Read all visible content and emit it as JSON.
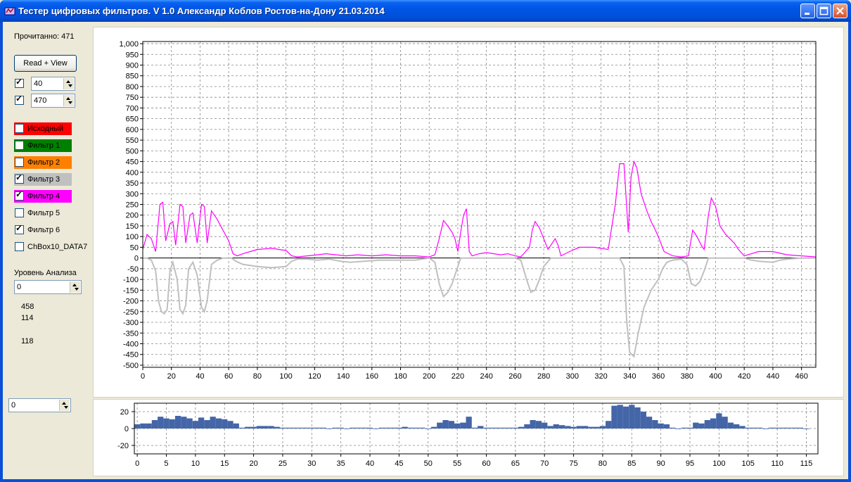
{
  "window": {
    "title": "Тестер цифровых фильтров. V 1.0 Александр Коблов Ростов-на-Дону 21.03.2014",
    "icons": [
      "app-icon",
      "minimize-icon",
      "maximize-icon",
      "close-icon"
    ]
  },
  "left_panel": {
    "read_count_label": "Прочитанно: 471",
    "read_view_button": "Read + View",
    "range_start": {
      "checked": true,
      "value": "40"
    },
    "range_end": {
      "checked": true,
      "value": "470"
    },
    "filters": [
      {
        "label": "Исходный",
        "checked": false,
        "color": "#ff0000"
      },
      {
        "label": "Фильтр 1",
        "checked": false,
        "color": "#008000"
      },
      {
        "label": "Фильтр 2",
        "checked": false,
        "color": "#ff8000"
      },
      {
        "label": "Фильтр 3",
        "checked": true,
        "color": "#c0c0c0"
      },
      {
        "label": "Фильтр 4",
        "checked": true,
        "color": "#ff00ff"
      },
      {
        "label": "Фильтр 5",
        "checked": false,
        "color": ""
      },
      {
        "label": "Фильтр 6",
        "checked": true,
        "color": ""
      },
      {
        "label": "ChBox10_DATA7",
        "checked": false,
        "color": ""
      }
    ],
    "analysis_label": "Уровень Анализа",
    "analysis_value": "0",
    "stat1": "458",
    "stat2": "114",
    "stat3": "118",
    "bottom_spin_value": "0"
  },
  "chart_data": [
    {
      "type": "line",
      "x_ticks": [
        "0",
        "20",
        "40",
        "60",
        "80",
        "100",
        "120",
        "140",
        "160",
        "180",
        "200",
        "220",
        "240",
        "260",
        "280",
        "300",
        "320",
        "340",
        "360",
        "380",
        "400",
        "420",
        "440",
        "460"
      ],
      "y_ticks": [
        "1,000",
        "950",
        "900",
        "850",
        "800",
        "750",
        "700",
        "650",
        "600",
        "550",
        "500",
        "450",
        "400",
        "350",
        "300",
        "250",
        "200",
        "150",
        "100",
        "50",
        "0",
        "-50",
        "-100",
        "-150",
        "-200",
        "-250",
        "-300",
        "-350",
        "-400",
        "-450",
        "-500"
      ],
      "xlim": [
        0,
        470
      ],
      "ylim": [
        -510,
        1010
      ],
      "grid": true,
      "series": [
        {
          "color": "#ff00ff",
          "points": [
            [
              0,
              40
            ],
            [
              3,
              110
            ],
            [
              6,
              90
            ],
            [
              9,
              30
            ],
            [
              12,
              250
            ],
            [
              14,
              260
            ],
            [
              16,
              80
            ],
            [
              19,
              160
            ],
            [
              21,
              170
            ],
            [
              23,
              60
            ],
            [
              26,
              250
            ],
            [
              28,
              240
            ],
            [
              30,
              70
            ],
            [
              33,
              200
            ],
            [
              35,
              210
            ],
            [
              38,
              70
            ],
            [
              41,
              250
            ],
            [
              43,
              240
            ],
            [
              45,
              70
            ],
            [
              48,
              220
            ],
            [
              52,
              180
            ],
            [
              56,
              130
            ],
            [
              60,
              80
            ],
            [
              63,
              20
            ],
            [
              66,
              10
            ],
            [
              70,
              20
            ],
            [
              80,
              40
            ],
            [
              90,
              45
            ],
            [
              100,
              35
            ],
            [
              104,
              10
            ],
            [
              108,
              5
            ],
            [
              115,
              10
            ],
            [
              122,
              15
            ],
            [
              128,
              20
            ],
            [
              135,
              15
            ],
            [
              142,
              10
            ],
            [
              150,
              15
            ],
            [
              160,
              10
            ],
            [
              170,
              15
            ],
            [
              180,
              10
            ],
            [
              190,
              10
            ],
            [
              200,
              5
            ],
            [
              204,
              15
            ],
            [
              207,
              90
            ],
            [
              210,
              175
            ],
            [
              213,
              150
            ],
            [
              216,
              120
            ],
            [
              218,
              90
            ],
            [
              220,
              30
            ],
            [
              222,
              120
            ],
            [
              224,
              200
            ],
            [
              226,
              230
            ],
            [
              228,
              30
            ],
            [
              230,
              10
            ],
            [
              235,
              20
            ],
            [
              240,
              25
            ],
            [
              250,
              15
            ],
            [
              255,
              20
            ],
            [
              260,
              10
            ],
            [
              264,
              5
            ],
            [
              270,
              50
            ],
            [
              272,
              130
            ],
            [
              274,
              170
            ],
            [
              277,
              140
            ],
            [
              280,
              90
            ],
            [
              283,
              40
            ],
            [
              285,
              60
            ],
            [
              288,
              90
            ],
            [
              290,
              60
            ],
            [
              292,
              10
            ],
            [
              298,
              30
            ],
            [
              305,
              50
            ],
            [
              315,
              50
            ],
            [
              325,
              40
            ],
            [
              330,
              250
            ],
            [
              333,
              440
            ],
            [
              336,
              440
            ],
            [
              339,
              120
            ],
            [
              341,
              380
            ],
            [
              343,
              450
            ],
            [
              345,
              420
            ],
            [
              348,
              300
            ],
            [
              352,
              220
            ],
            [
              355,
              170
            ],
            [
              358,
              130
            ],
            [
              360,
              100
            ],
            [
              364,
              30
            ],
            [
              370,
              10
            ],
            [
              376,
              5
            ],
            [
              381,
              10
            ],
            [
              384,
              130
            ],
            [
              387,
              100
            ],
            [
              390,
              60
            ],
            [
              392,
              40
            ],
            [
              395,
              200
            ],
            [
              397,
              280
            ],
            [
              400,
              240
            ],
            [
              403,
              150
            ],
            [
              407,
              110
            ],
            [
              410,
              90
            ],
            [
              413,
              70
            ],
            [
              416,
              40
            ],
            [
              420,
              10
            ],
            [
              430,
              30
            ],
            [
              440,
              30
            ],
            [
              450,
              15
            ],
            [
              460,
              10
            ],
            [
              470,
              5
            ]
          ]
        },
        {
          "color": "#c0c0c0",
          "points": [
            [
              0,
              0
            ],
            [
              3,
              0
            ],
            [
              6,
              -10
            ],
            [
              9,
              -60
            ],
            [
              11,
              -200
            ],
            [
              13,
              -250
            ],
            [
              15,
              -260
            ],
            [
              17,
              -240
            ],
            [
              19,
              -60
            ],
            [
              21,
              -20
            ],
            [
              24,
              -100
            ],
            [
              26,
              -240
            ],
            [
              28,
              -260
            ],
            [
              30,
              -220
            ],
            [
              32,
              -50
            ],
            [
              35,
              -20
            ],
            [
              38,
              -80
            ],
            [
              41,
              -230
            ],
            [
              43,
              -250
            ],
            [
              45,
              -200
            ],
            [
              48,
              -30
            ],
            [
              52,
              -10
            ],
            [
              56,
              0
            ],
            [
              62,
              0
            ],
            [
              65,
              -15
            ],
            [
              70,
              -30
            ],
            [
              80,
              -40
            ],
            [
              90,
              -45
            ],
            [
              100,
              -40
            ],
            [
              104,
              -15
            ],
            [
              108,
              -5
            ],
            [
              115,
              -5
            ],
            [
              122,
              -10
            ],
            [
              130,
              -5
            ],
            [
              138,
              -15
            ],
            [
              145,
              -20
            ],
            [
              155,
              -15
            ],
            [
              165,
              -10
            ],
            [
              175,
              -10
            ],
            [
              190,
              -10
            ],
            [
              200,
              0
            ],
            [
              204,
              -20
            ],
            [
              207,
              -120
            ],
            [
              210,
              -180
            ],
            [
              213,
              -160
            ],
            [
              216,
              -120
            ],
            [
              219,
              -60
            ],
            [
              222,
              0
            ],
            [
              230,
              0
            ],
            [
              240,
              0
            ],
            [
              250,
              0
            ],
            [
              255,
              0
            ],
            [
              260,
              0
            ],
            [
              264,
              -10
            ],
            [
              268,
              -100
            ],
            [
              271,
              -160
            ],
            [
              274,
              -150
            ],
            [
              277,
              -100
            ],
            [
              280,
              -40
            ],
            [
              285,
              0
            ],
            [
              298,
              0
            ],
            [
              325,
              0
            ],
            [
              330,
              0
            ],
            [
              333,
              0
            ],
            [
              336,
              -40
            ],
            [
              338,
              -300
            ],
            [
              340,
              -440
            ],
            [
              343,
              -460
            ],
            [
              346,
              -350
            ],
            [
              350,
              -230
            ],
            [
              355,
              -150
            ],
            [
              360,
              -100
            ],
            [
              363,
              -50
            ],
            [
              366,
              -20
            ],
            [
              370,
              -10
            ],
            [
              376,
              -5
            ],
            [
              380,
              -30
            ],
            [
              383,
              -120
            ],
            [
              386,
              -130
            ],
            [
              389,
              -110
            ],
            [
              392,
              -60
            ],
            [
              395,
              0
            ],
            [
              410,
              0
            ],
            [
              420,
              0
            ],
            [
              425,
              -10
            ],
            [
              430,
              -15
            ],
            [
              440,
              -20
            ],
            [
              445,
              -10
            ],
            [
              450,
              -5
            ],
            [
              460,
              0
            ],
            [
              470,
              0
            ]
          ]
        }
      ]
    },
    {
      "type": "bar",
      "x_ticks": [
        "0",
        "5",
        "10",
        "15",
        "20",
        "25",
        "30",
        "35",
        "40",
        "45",
        "50",
        "55",
        "60",
        "65",
        "70",
        "75",
        "80",
        "85",
        "90",
        "95",
        "100",
        "105",
        "110",
        "115"
      ],
      "y_ticks": [
        "20",
        "0",
        "-20"
      ],
      "xlim": [
        -0.5,
        117
      ],
      "ylim": [
        -30,
        30
      ],
      "grid": true,
      "color": "#4466a8",
      "values": [
        5,
        6,
        6,
        10,
        14,
        12,
        11,
        15,
        14,
        12,
        9,
        13,
        10,
        14,
        12,
        11,
        9,
        6,
        1,
        2,
        2,
        3,
        3,
        3,
        2,
        1,
        1,
        1,
        1,
        1,
        1,
        1,
        1,
        0,
        1,
        1,
        0,
        1,
        1,
        1,
        1,
        0,
        1,
        1,
        1,
        1,
        2,
        1,
        1,
        1,
        0,
        2,
        7,
        10,
        9,
        6,
        7,
        14,
        1,
        3,
        1,
        1,
        1,
        1,
        1,
        1,
        2,
        5,
        10,
        9,
        7,
        3,
        5,
        4,
        3,
        2,
        3,
        3,
        2,
        2,
        3,
        9,
        27,
        28,
        26,
        28,
        25,
        20,
        14,
        10,
        6,
        5,
        1,
        0,
        1,
        1,
        7,
        6,
        10,
        12,
        18,
        14,
        7,
        5,
        3,
        1,
        1,
        1,
        0,
        1,
        1,
        1,
        1,
        1,
        1,
        0
      ]
    }
  ]
}
